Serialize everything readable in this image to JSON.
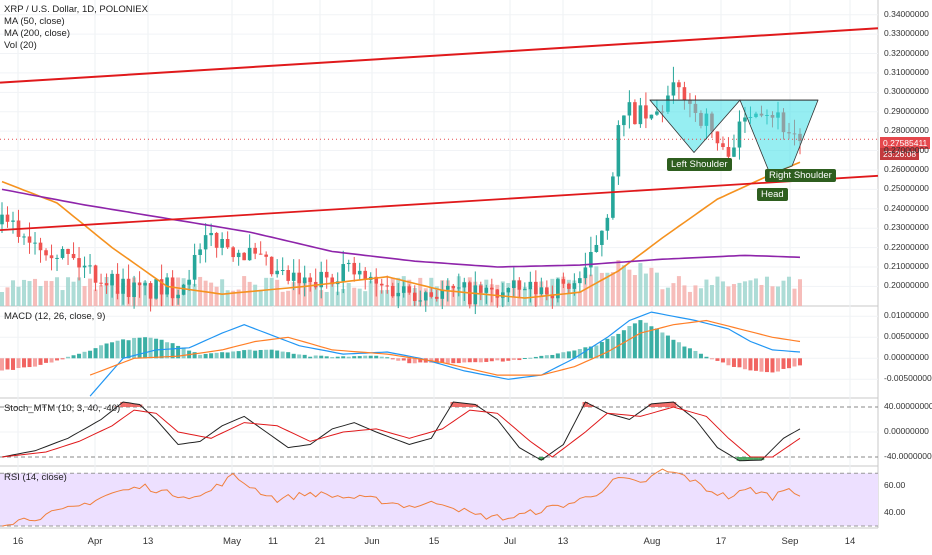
{
  "legend": {
    "symbol": "XRP / U.S. Dollar, 1D, POLONIEX",
    "ma50": "MA (50, close)",
    "ma200": "MA (200, close)",
    "vol": "Vol (20)",
    "macd": "MACD (12, 26, close, 9)",
    "stoch": "Stoch_MTM (10, 3, 40, -40)",
    "rsi": "RSI (14, close)"
  },
  "annotations": {
    "left_shoulder": "Left Shoulder",
    "head": "Head",
    "right_shoulder": "Right Shoulder"
  },
  "price_tags": {
    "last_price": "0.27585411",
    "countdown": "23:26:08"
  },
  "colors": {
    "up": "#26a69a",
    "down": "#ef5350",
    "trendline": "#e0191b",
    "ma50": "#f5921f",
    "ma200": "#8e24aa",
    "pattern_fill": "#40e0e8",
    "macd_line": "#2196f3",
    "signal_line": "#ff7f27",
    "rsi_line": "#f07f3c",
    "rsi_band": "#ede0ff",
    "annotation_bg": "#2e5e1f"
  },
  "chart_data": [
    {
      "type": "candlestick",
      "panel": "price",
      "ylabels": [
        "0.34000000",
        "0.33000000",
        "0.32000000",
        "0.31000000",
        "0.30000000",
        "0.29000000",
        "0.28000000",
        "0.27000000",
        "0.26000000",
        "0.25000000",
        "0.24000000",
        "0.23000000",
        "0.22000000",
        "0.21000000",
        "0.20000000"
      ],
      "yticks": [
        0.34,
        0.33,
        0.32,
        0.31,
        0.3,
        0.29,
        0.28,
        0.27,
        0.26,
        0.25,
        0.24,
        0.23,
        0.22,
        0.21,
        0.2
      ],
      "ylim": [
        0.193,
        0.345
      ],
      "xlabels": [
        "16",
        "Apr",
        "13",
        "May",
        "11",
        "21",
        "Jun",
        "15",
        "Jul",
        "13",
        "Aug",
        "17",
        "Sep",
        "14"
      ],
      "series": [
        {
          "name": "MA (50, close)",
          "anchors": [
            [
              0,
              0.254
            ],
            [
              10,
              0.243
            ],
            [
              20,
              0.22
            ],
            [
              30,
              0.2
            ],
            [
              40,
              0.196
            ],
            [
              55,
              0.2
            ],
            [
              70,
              0.205
            ],
            [
              80,
              0.198
            ],
            [
              95,
              0.194
            ],
            [
              105,
              0.197
            ],
            [
              112,
              0.208
            ],
            [
              120,
              0.225
            ],
            [
              130,
              0.245
            ],
            [
              140,
              0.258
            ],
            [
              145,
              0.264
            ]
          ]
        },
        {
          "name": "MA (200, close)",
          "anchors": [
            [
              0,
              0.25
            ],
            [
              15,
              0.242
            ],
            [
              30,
              0.235
            ],
            [
              45,
              0.228
            ],
            [
              60,
              0.218
            ],
            [
              75,
              0.213
            ],
            [
              90,
              0.21
            ],
            [
              105,
              0.211
            ],
            [
              120,
              0.214
            ],
            [
              135,
              0.216
            ],
            [
              145,
              0.215
            ]
          ]
        }
      ]
    },
    {
      "type": "bar",
      "panel": "macd",
      "ylabels": [
        "0.01000000",
        "0.00500000",
        "0.00000000",
        "-0.00500000"
      ],
      "yticks": [
        0.01,
        0.005,
        0.0,
        -0.005
      ],
      "ylim": [
        -0.0085,
        0.0115
      ]
    },
    {
      "type": "line",
      "panel": "stoch_mtm",
      "ylabels": [
        "40.00000000",
        "0.00000000",
        "-40.00000000"
      ],
      "yticks": [
        40,
        0,
        -40
      ],
      "ylim": [
        -48,
        48
      ]
    },
    {
      "type": "line",
      "panel": "rsi",
      "ylabels": [
        "60.00",
        "40.00"
      ],
      "yticks": [
        60,
        40
      ],
      "ylim": [
        30,
        74
      ],
      "band": [
        30,
        70
      ]
    }
  ]
}
